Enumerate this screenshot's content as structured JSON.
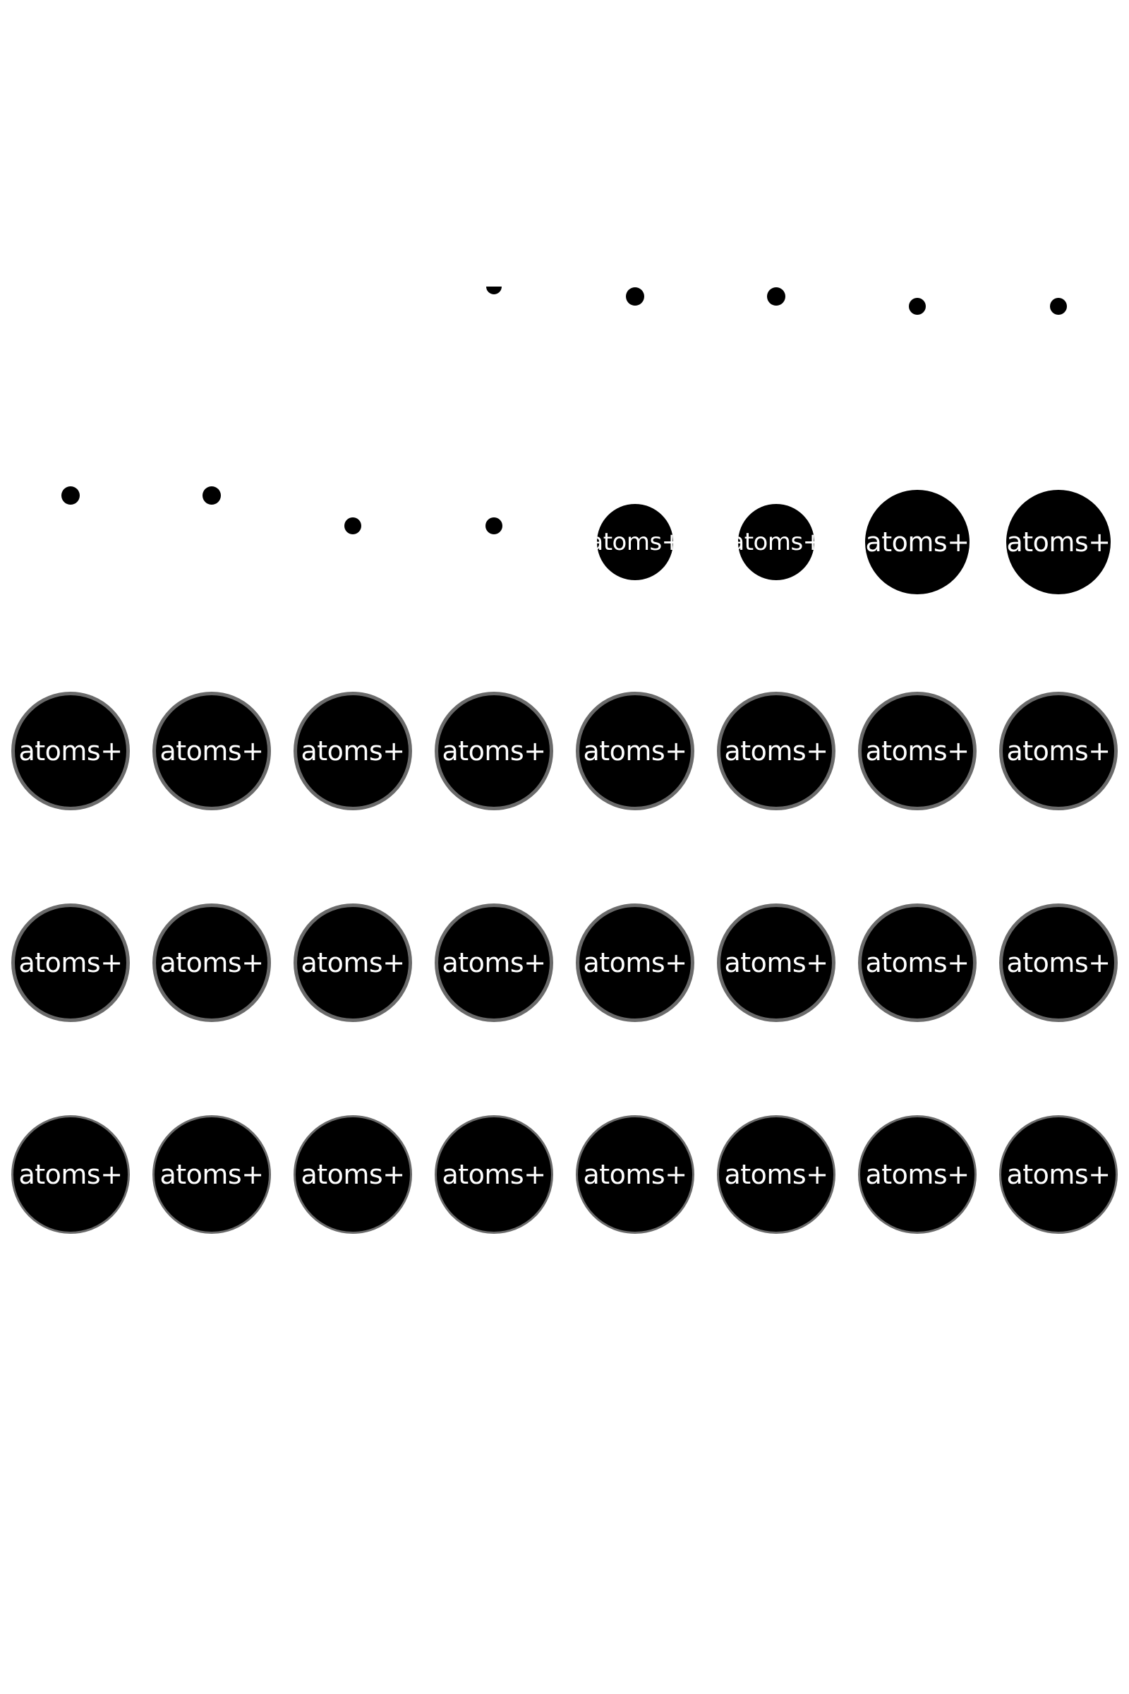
{
  "logo": {
    "text": "atoms+",
    "fill_color": "#000000",
    "text_color": "#ffffff",
    "background": "#ffffff"
  },
  "frames": [
    {
      "kind": "blank"
    },
    {
      "kind": "blank"
    },
    {
      "kind": "blank"
    },
    {
      "kind": "blank"
    },
    {
      "kind": "blank"
    },
    {
      "kind": "blank"
    },
    {
      "kind": "blank"
    },
    {
      "kind": "blank"
    },
    {
      "kind": "blank"
    },
    {
      "kind": "blank"
    },
    {
      "kind": "blank"
    },
    {
      "kind": "dot"
    },
    {
      "kind": "dot"
    },
    {
      "kind": "dot"
    },
    {
      "kind": "dot"
    },
    {
      "kind": "dot"
    },
    {
      "kind": "dot"
    },
    {
      "kind": "dot"
    },
    {
      "kind": "dot"
    },
    {
      "kind": "dot"
    },
    {
      "kind": "badge",
      "label": "atoms+"
    },
    {
      "kind": "badge",
      "label": "atoms+"
    },
    {
      "kind": "badge",
      "label": "atoms+"
    },
    {
      "kind": "badge",
      "label": "atoms+"
    },
    {
      "kind": "badge",
      "label": "atoms+"
    },
    {
      "kind": "badge",
      "label": "atoms+"
    },
    {
      "kind": "badge",
      "label": "atoms+"
    },
    {
      "kind": "badge",
      "label": "atoms+"
    },
    {
      "kind": "badge",
      "label": "atoms+"
    },
    {
      "kind": "badge",
      "label": "atoms+"
    },
    {
      "kind": "badge",
      "label": "atoms+"
    },
    {
      "kind": "badge",
      "label": "atoms+"
    },
    {
      "kind": "badge",
      "label": "atoms+"
    },
    {
      "kind": "badge",
      "label": "atoms+"
    },
    {
      "kind": "badge",
      "label": "atoms+"
    },
    {
      "kind": "badge",
      "label": "atoms+"
    },
    {
      "kind": "badge",
      "label": "atoms+"
    },
    {
      "kind": "badge",
      "label": "atoms+"
    },
    {
      "kind": "badge",
      "label": "atoms+"
    },
    {
      "kind": "badge",
      "label": "atoms+"
    },
    {
      "kind": "badge",
      "label": "atoms+"
    },
    {
      "kind": "badge",
      "label": "atoms+"
    },
    {
      "kind": "badge",
      "label": "atoms+"
    },
    {
      "kind": "badge",
      "label": "atoms+"
    },
    {
      "kind": "badge",
      "label": "atoms+"
    },
    {
      "kind": "badge",
      "label": "atoms+"
    },
    {
      "kind": "badge",
      "label": "atoms+"
    },
    {
      "kind": "badge",
      "label": "atoms+"
    }
  ]
}
